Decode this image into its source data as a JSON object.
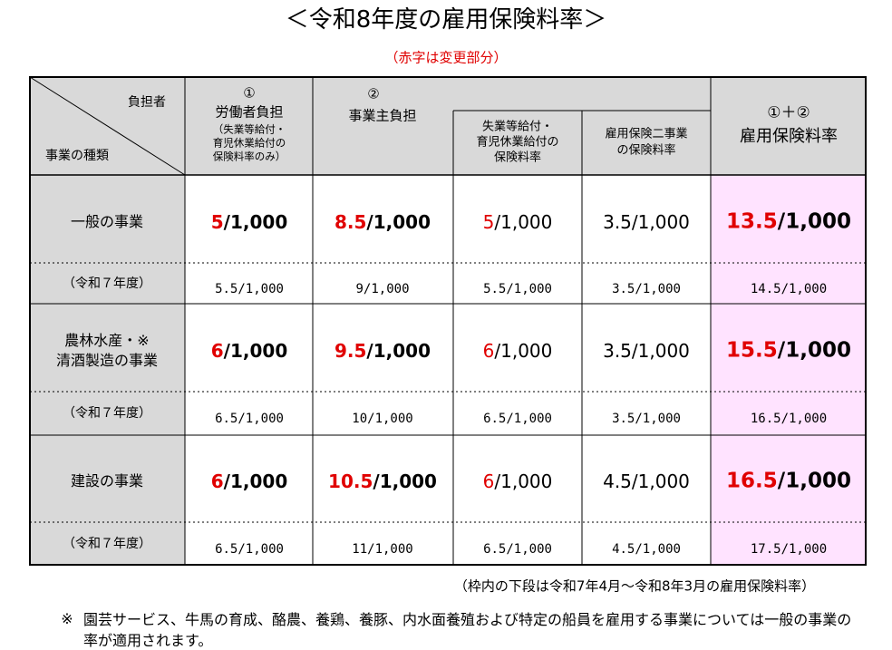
{
  "title": "＜令和8年度の雇用保険料率＞",
  "note": "（赤字は変更部分）",
  "header": {
    "diag_top": "負担者",
    "diag_bottom": "事業の種類",
    "col1_num": "①",
    "col1_title": "労働者負担",
    "col1_sub": [
      "（失業等給付・",
      "育児休業給付の",
      "保険料率のみ）"
    ],
    "col2_num": "②",
    "col2_title": "事業主負担",
    "col2a": [
      "失業等給付・",
      "育児休業給付の",
      "保険料率"
    ],
    "col2b": [
      "雇用保険二事業",
      "の保険料率"
    ],
    "col3_num": "①＋②",
    "col3_title": "雇用保険料率"
  },
  "rows": [
    {
      "label": [
        "一般の事業"
      ],
      "cells": [
        [
          {
            "text": "5",
            "red": true
          },
          {
            "text": "/1,000"
          }
        ],
        [
          {
            "text": "8.5",
            "red": true
          },
          {
            "text": "/1,000"
          }
        ],
        [
          {
            "text": "5",
            "red": true
          },
          {
            "text": "/1,000"
          }
        ],
        [
          {
            "text": "3.5/1,000"
          }
        ],
        [
          {
            "text": "13.5",
            "red": true
          },
          {
            "text": "/1,000"
          }
        ]
      ],
      "prev_label": "（令和７年度）",
      "prev": [
        "5.5/1,000",
        "9/1,000",
        "5.5/1,000",
        "3.5/1,000",
        "14.5/1,000"
      ]
    },
    {
      "label": [
        "農林水産・※",
        "清酒製造の事業"
      ],
      "cells": [
        [
          {
            "text": "6",
            "red": true
          },
          {
            "text": "/1,000"
          }
        ],
        [
          {
            "text": "9.5",
            "red": true
          },
          {
            "text": "/1,000"
          }
        ],
        [
          {
            "text": "6",
            "red": true
          },
          {
            "text": "/1,000"
          }
        ],
        [
          {
            "text": "3.5/1,000"
          }
        ],
        [
          {
            "text": "15.5",
            "red": true
          },
          {
            "text": "/1,000"
          }
        ]
      ],
      "prev_label": "（令和７年度）",
      "prev": [
        "6.5/1,000",
        "10/1,000",
        "6.5/1,000",
        "3.5/1,000",
        "16.5/1,000"
      ]
    },
    {
      "label": [
        "建設の事業"
      ],
      "cells": [
        [
          {
            "text": "6",
            "red": true
          },
          {
            "text": "/1,000"
          }
        ],
        [
          {
            "text": "10.5",
            "red": true
          },
          {
            "text": "/1,000"
          }
        ],
        [
          {
            "text": "6",
            "red": true
          },
          {
            "text": "/1,000"
          }
        ],
        [
          {
            "text": "4.5/1,000"
          }
        ],
        [
          {
            "text": "16.5",
            "red": true
          },
          {
            "text": "/1,000"
          }
        ]
      ],
      "prev_label": "（令和７年度）",
      "prev": [
        "6.5/1,000",
        "11/1,000",
        "6.5/1,000",
        "4.5/1,000",
        "17.5/1,000"
      ]
    }
  ],
  "footer": "（枠内の下段は令和7年4月～令和8年3月の雇用保険料率）",
  "footnote_mark": "※",
  "footnote": "園芸サービス、牛馬の育成、酪農、養鶏、養豚、内水面養殖および特定の船員を雇用する事業については一般の事業の率が適用されます。"
}
